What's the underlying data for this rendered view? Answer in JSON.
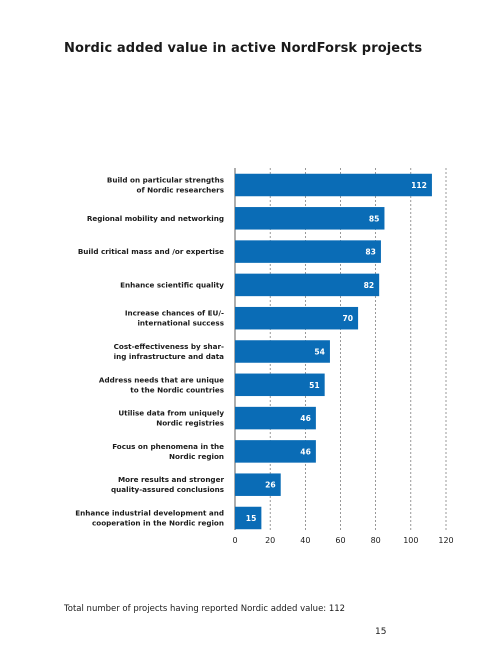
{
  "page": {
    "title": "Nordic added value in active NordForsk projects",
    "footnote": "Total number of projects having reported Nordic added value: 112",
    "page_number": "15"
  },
  "chart_data": {
    "type": "bar",
    "orientation": "horizontal",
    "title": "Nordic added value in active NordForsk projects",
    "xlabel": "",
    "ylabel": "",
    "xlim": [
      0,
      120
    ],
    "xticks": [
      0,
      20,
      40,
      60,
      80,
      100,
      120
    ],
    "grid": "vertical dashed",
    "bar_color": "#0a6cb6",
    "categories": [
      [
        "Build on particular strengths",
        "of Nordic researchers"
      ],
      [
        "Regional mobility and networking"
      ],
      [
        "Build critical mass and /or expertise"
      ],
      [
        "Enhance scientific quality"
      ],
      [
        "Increase chances of EU/-",
        "international success"
      ],
      [
        "Cost-effectiveness by shar-",
        "ing infrastructure and data"
      ],
      [
        "Address needs that are unique",
        "to the Nordic countries"
      ],
      [
        "Utilise data from uniquely",
        "Nordic registries"
      ],
      [
        "Focus on phenomena in the",
        "Nordic region"
      ],
      [
        "More results and stronger",
        "quality-assured conclusions"
      ],
      [
        "Enhance industrial development and",
        "cooperation in the Nordic region"
      ]
    ],
    "values": [
      112,
      85,
      83,
      82,
      70,
      54,
      51,
      46,
      46,
      26,
      15
    ]
  }
}
